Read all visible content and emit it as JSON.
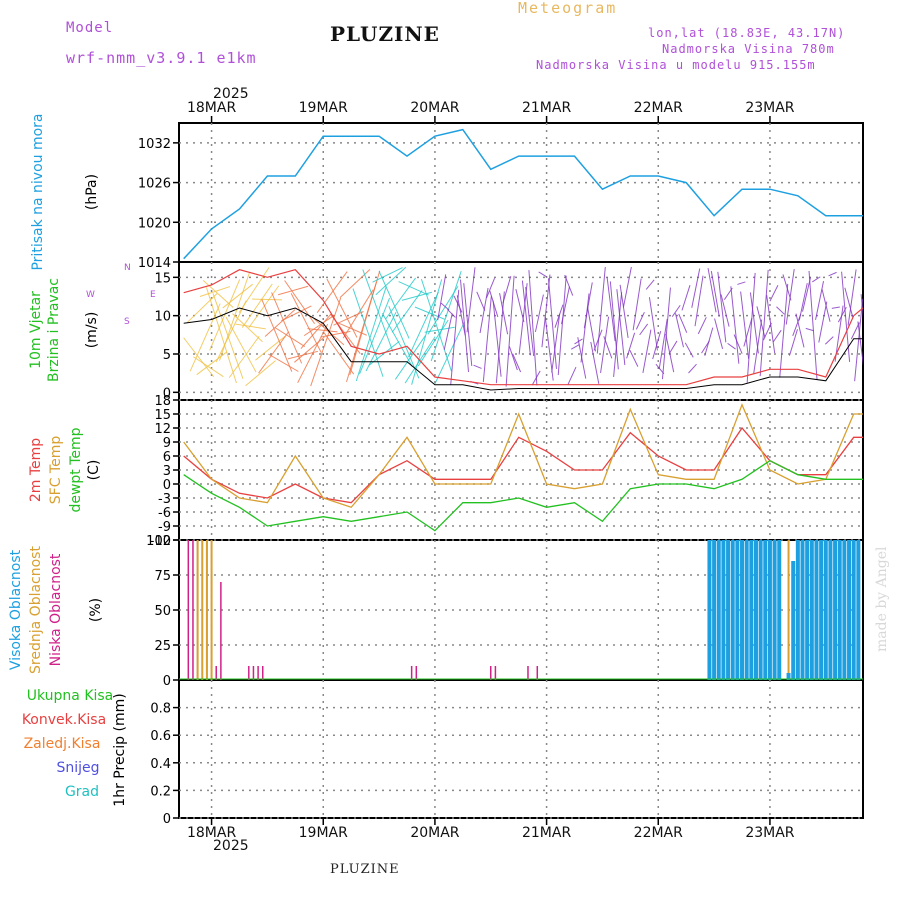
{
  "header": {
    "title": "Meteogram",
    "model_label": "Model",
    "model_name": "wrf-nmm_v3.9.1 e1km",
    "station": "PLUZINE",
    "coords": "lon,lat (18.83E, 43.17N)",
    "elevation": "Nadmorska Visina 780m",
    "model_elevation": "Nadmorska Visina u modelu 915.155m",
    "year": "2025"
  },
  "footer": {
    "station": "PLUZINE",
    "watermark": "made by Angel"
  },
  "colors": {
    "pressure": "#1ea0e0",
    "wind_label": "#22c020",
    "temp2m": "#e84040",
    "sfc": "#d8a030",
    "dewpt": "#22c020",
    "high_cloud": "#1ea0e0",
    "mid_cloud": "#d8a030",
    "low_cloud": "#d0208a",
    "conv": "#e84040",
    "zaled": "#f08030",
    "snow": "#5050e0",
    "grad": "#20c0c0",
    "header": "#b050d8"
  },
  "chart_data": [
    {
      "type": "line",
      "name": "pressure",
      "ylabel_colored": "Pritisak na nivou mora",
      "ylabel_unit": "(hPa)",
      "yticks": [
        "1014",
        "1020",
        "1026",
        "1032"
      ],
      "ylim": [
        1014,
        1035
      ],
      "x_unit": "hours since 18MAR 00Z",
      "x": [
        -6,
        0,
        6,
        12,
        18,
        24,
        30,
        36,
        42,
        48,
        54,
        60,
        66,
        72,
        78,
        84,
        90,
        96,
        102,
        108,
        114,
        120,
        126,
        132,
        138,
        140
      ],
      "y": [
        1014.5,
        1019,
        1022,
        1027,
        1027,
        1033,
        1033,
        1033,
        1030,
        1033,
        1034,
        1028,
        1030,
        1030,
        1030,
        1025,
        1027,
        1027,
        1026,
        1021,
        1025,
        1025,
        1024,
        1021,
        1021,
        1021
      ],
      "grid": true
    },
    {
      "type": "line",
      "name": "wind",
      "ylabel_colored": [
        "10m Vjetar",
        "Brzina i Pravac"
      ],
      "ylabel_unit": "(m/s)",
      "compass": {
        "n": "N",
        "s": "S",
        "e": "E",
        "w": "W"
      },
      "yticks": [
        "0",
        "5",
        "10",
        "15"
      ],
      "ylim": [
        -1,
        17
      ],
      "series": [
        {
          "name": "speed",
          "x": [
            -6,
            0,
            6,
            12,
            18,
            24,
            30,
            36,
            42,
            48,
            54,
            60,
            66,
            72,
            78,
            84,
            90,
            96,
            102,
            108,
            114,
            120,
            126,
            132,
            138,
            140
          ],
          "y": [
            9,
            9.5,
            11,
            10,
            11,
            9,
            4,
            4,
            4,
            1,
            1,
            0.3,
            0.5,
            0.5,
            0.5,
            0.5,
            0.5,
            0.5,
            0.5,
            1,
            1,
            2,
            2,
            1.5,
            7,
            7
          ]
        },
        {
          "name": "gust",
          "x": [
            -6,
            0,
            6,
            12,
            18,
            24,
            30,
            36,
            42,
            48,
            54,
            60,
            66,
            72,
            78,
            84,
            90,
            96,
            102,
            108,
            114,
            120,
            126,
            132,
            138,
            140
          ],
          "y": [
            13,
            14,
            16,
            15,
            16,
            12,
            6,
            5,
            6,
            2,
            1.5,
            1,
            1,
            1,
            1,
            1,
            1,
            1,
            1,
            2,
            2,
            3,
            3,
            2,
            10,
            11
          ]
        }
      ],
      "grid": true
    },
    {
      "type": "line",
      "name": "temperature",
      "ylabel_colored": [
        "2m Temp",
        "SFC Temp",
        "dewpt Temp"
      ],
      "ylabel_unit": "(C)",
      "yticks": [
        "-12",
        "-9",
        "-6",
        "-3",
        "0",
        "3",
        "6",
        "9",
        "12",
        "15",
        "18"
      ],
      "ylim": [
        -12,
        18
      ],
      "x": [
        -6,
        0,
        6,
        12,
        18,
        24,
        30,
        36,
        42,
        48,
        54,
        60,
        66,
        72,
        78,
        84,
        90,
        96,
        102,
        108,
        114,
        120,
        126,
        132,
        138,
        140
      ],
      "series": [
        {
          "name": "2m Temp",
          "y": [
            6,
            1,
            -2,
            -3,
            0,
            -3,
            -4,
            2,
            5,
            1,
            1,
            1,
            10,
            7,
            3,
            3,
            11,
            6,
            3,
            3,
            12,
            5,
            2,
            2,
            10,
            10
          ]
        },
        {
          "name": "SFC Temp",
          "y": [
            9,
            1,
            -3,
            -4,
            6,
            -3,
            -5,
            2,
            10,
            0,
            0,
            0,
            15,
            0,
            -1,
            0,
            16,
            2,
            1,
            1,
            17,
            3,
            0,
            1,
            15,
            15
          ]
        },
        {
          "name": "dewpt Temp",
          "y": [
            2,
            -2,
            -5,
            -9,
            -8,
            -7,
            -8,
            -7,
            -6,
            -10,
            -4,
            -4,
            -3,
            -5,
            -4,
            -8,
            -1,
            0,
            0,
            -1,
            1,
            5,
            2,
            1,
            1,
            1
          ]
        }
      ],
      "grid": true
    },
    {
      "type": "bar",
      "name": "clouds",
      "ylabel_colored": [
        "Visoka Oblacnost",
        "Srednja Oblacnost",
        "Niska Oblacnost"
      ],
      "ylabel_unit": "(%)",
      "yticks": [
        "0",
        "25",
        "50",
        "75",
        "100"
      ],
      "ylim": [
        0,
        100
      ],
      "series": [
        {
          "name": "Niska Oblacnost",
          "x": [
            -5,
            -4,
            -3,
            -2,
            -1,
            1,
            2,
            8,
            9,
            10,
            11,
            43,
            44,
            60,
            61,
            68,
            70,
            107,
            108,
            118,
            119,
            126,
            127,
            128,
            129,
            130,
            131,
            132,
            133
          ],
          "y": [
            100,
            100,
            100,
            100,
            100,
            10,
            70,
            10,
            10,
            10,
            10,
            10,
            10,
            10,
            10,
            10,
            10,
            100,
            100,
            5,
            10,
            100,
            5,
            90,
            5,
            100,
            100,
            100,
            100
          ]
        },
        {
          "name": "Srednja Oblacnost",
          "x": [
            -3,
            -2,
            -1,
            0,
            110,
            112,
            114,
            116,
            118,
            120,
            122,
            124,
            128,
            132,
            136
          ],
          "y": [
            100,
            100,
            100,
            100,
            100,
            100,
            100,
            100,
            100,
            100,
            100,
            100,
            100,
            100,
            100
          ]
        },
        {
          "name": "Visoka Oblacnost",
          "x": [
            107,
            108,
            109,
            110,
            111,
            112,
            113,
            114,
            115,
            116,
            117,
            118,
            119,
            120,
            121,
            122,
            124,
            125,
            126,
            127,
            128,
            129,
            130,
            131,
            132,
            133,
            134,
            135,
            136,
            137,
            138,
            139
          ],
          "y": [
            100,
            100,
            100,
            100,
            100,
            100,
            100,
            100,
            100,
            100,
            100,
            100,
            100,
            100,
            100,
            100,
            5,
            85,
            100,
            100,
            100,
            100,
            100,
            100,
            100,
            100,
            100,
            100,
            100,
            100,
            100,
            100
          ]
        }
      ],
      "grid": true
    },
    {
      "type": "line",
      "name": "precip",
      "legend": [
        "Ukupna Kisa",
        "Konvek.Kisa",
        "Zaledj.Kisa",
        "Snijeg",
        "Grad"
      ],
      "ylabel_unit": "1hr Precip (mm)",
      "yticks": [
        "0",
        "0.2",
        "0.4",
        "0.6",
        "0.8"
      ],
      "ylim": [
        0,
        1
      ],
      "series": [],
      "grid": true
    }
  ],
  "x_axis": {
    "ticks": [
      "18MAR",
      "19MAR",
      "20MAR",
      "21MAR",
      "22MAR",
      "23MAR"
    ],
    "tick_hours": [
      0,
      24,
      48,
      72,
      96,
      120
    ],
    "range_hours": [
      -7,
      140
    ]
  }
}
